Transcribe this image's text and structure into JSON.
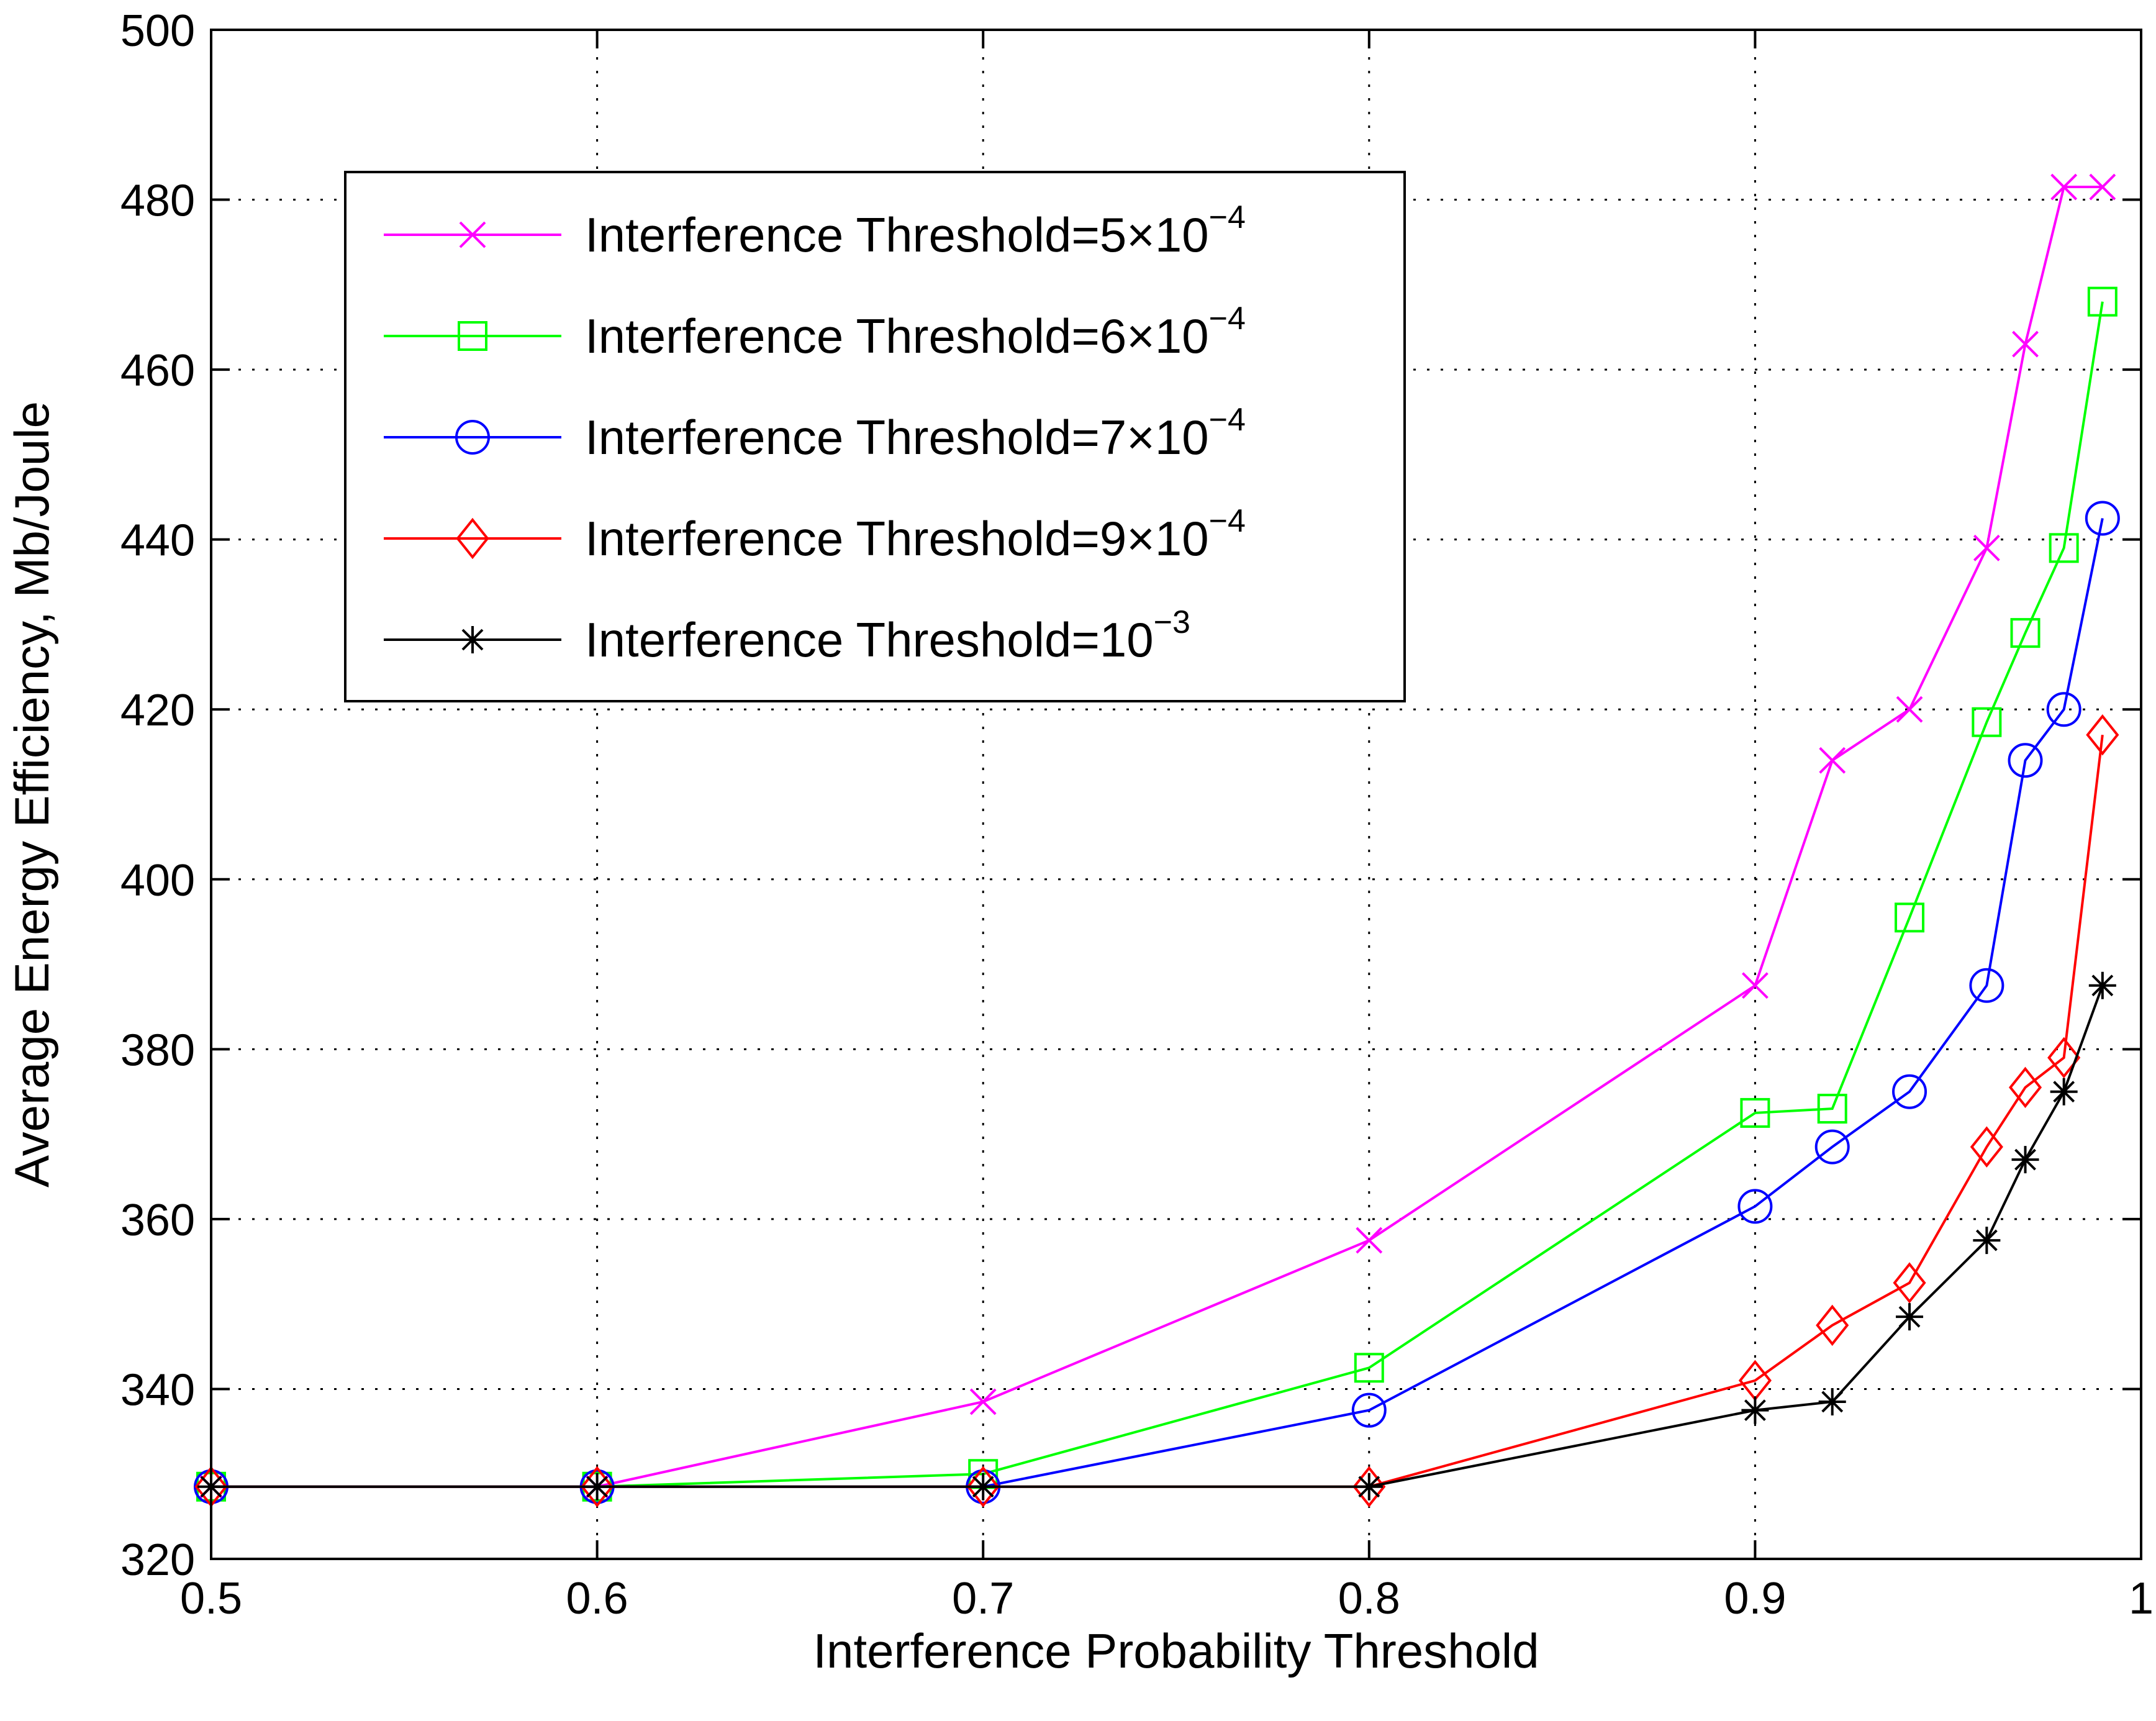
{
  "chart_data": {
    "type": "line",
    "title": "",
    "xlabel": "Interference Probability Threshold",
    "ylabel": "Average Energy Efficiency, Mb/Joule",
    "xlim": [
      0.5,
      1
    ],
    "ylim": [
      320,
      500
    ],
    "xticks": [
      0.5,
      0.6,
      0.7,
      0.8,
      0.9,
      1
    ],
    "xtick_labels": [
      "0.5",
      "0.6",
      "0.7",
      "0.8",
      "0.9",
      "1"
    ],
    "yticks": [
      320,
      340,
      360,
      380,
      400,
      420,
      440,
      460,
      480,
      500
    ],
    "ytick_labels": [
      "320",
      "340",
      "360",
      "380",
      "400",
      "420",
      "440",
      "460",
      "480",
      "500"
    ],
    "grid": true,
    "legend_position": "top-left",
    "series": [
      {
        "name": "Interference Threshold=5×10⁻⁴",
        "label_base": "Interference Threshold=5×10",
        "label_exp": "−4",
        "color": "#ff00ff",
        "marker": "x",
        "x": [
          0.5,
          0.6,
          0.7,
          0.8,
          0.9,
          0.92,
          0.94,
          0.96,
          0.97,
          0.98,
          0.99
        ],
        "y": [
          328.5,
          328.5,
          338.5,
          357.5,
          387.5,
          414,
          420,
          439,
          463,
          481.5,
          481.5
        ]
      },
      {
        "name": "Interference Threshold=6×10⁻⁴",
        "label_base": "Interference Threshold=6×10",
        "label_exp": "−4",
        "color": "#00ff00",
        "marker": "square",
        "x": [
          0.5,
          0.6,
          0.7,
          0.8,
          0.9,
          0.92,
          0.94,
          0.96,
          0.97,
          0.98,
          0.99
        ],
        "y": [
          328.5,
          328.5,
          330,
          342.5,
          372.5,
          373,
          395.5,
          418.5,
          429,
          439,
          468
        ]
      },
      {
        "name": "Interference Threshold=7×10⁻⁴",
        "label_base": "Interference Threshold=7×10",
        "label_exp": "−4",
        "color": "#0000ff",
        "marker": "circle",
        "x": [
          0.5,
          0.6,
          0.7,
          0.8,
          0.9,
          0.92,
          0.94,
          0.96,
          0.97,
          0.98,
          0.99
        ],
        "y": [
          328.5,
          328.5,
          328.5,
          337.5,
          361.5,
          368.5,
          375,
          387.5,
          414,
          420,
          442.5
        ]
      },
      {
        "name": "Interference Threshold=9×10⁻⁴",
        "label_base": "Interference Threshold=9×10",
        "label_exp": "−4",
        "color": "#ff0000",
        "marker": "diamond",
        "x": [
          0.5,
          0.6,
          0.7,
          0.8,
          0.9,
          0.92,
          0.94,
          0.96,
          0.97,
          0.98,
          0.99
        ],
        "y": [
          328.5,
          328.5,
          328.5,
          328.5,
          341,
          347.5,
          352.5,
          368.5,
          375.5,
          379,
          417
        ]
      },
      {
        "name": "Interference Threshold=10⁻³",
        "label_base": "Interference Threshold=10",
        "label_exp": "−3",
        "color": "#000000",
        "marker": "star",
        "x": [
          0.5,
          0.6,
          0.7,
          0.8,
          0.9,
          0.92,
          0.94,
          0.96,
          0.97,
          0.98,
          0.99
        ],
        "y": [
          328.5,
          328.5,
          328.5,
          328.5,
          337.5,
          338.5,
          348.5,
          357.5,
          367,
          375,
          387.5
        ]
      }
    ]
  }
}
